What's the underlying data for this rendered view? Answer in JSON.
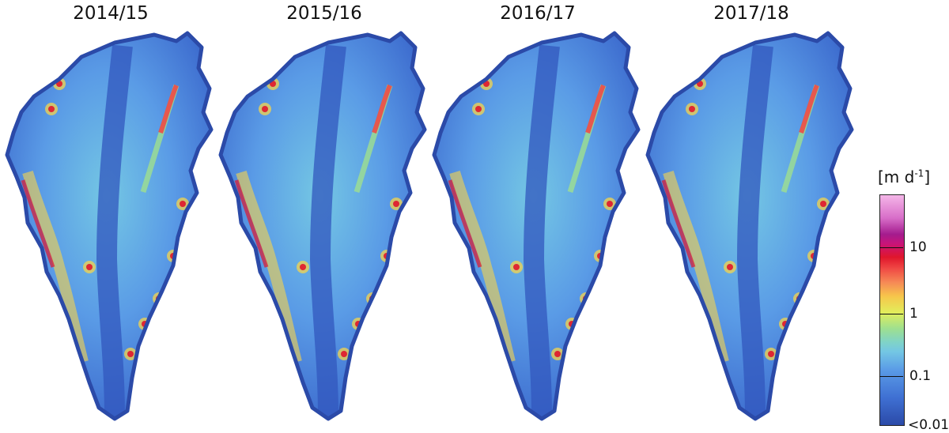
{
  "panels": [
    {
      "title": "2014/15"
    },
    {
      "title": "2015/16"
    },
    {
      "title": "2016/17"
    },
    {
      "title": "2017/18"
    }
  ],
  "legend": {
    "unit_prefix": "[m d",
    "unit_exp": "-1",
    "unit_suffix": "]",
    "ticks": [
      "10",
      "1",
      "0.1",
      "<0.01"
    ]
  },
  "colors": {
    "slow": "#2e54b4",
    "medium": "#74c7e4",
    "fast": "#f6d44b",
    "very_fast": "#e0162c",
    "ocean": "#ffffff"
  }
}
